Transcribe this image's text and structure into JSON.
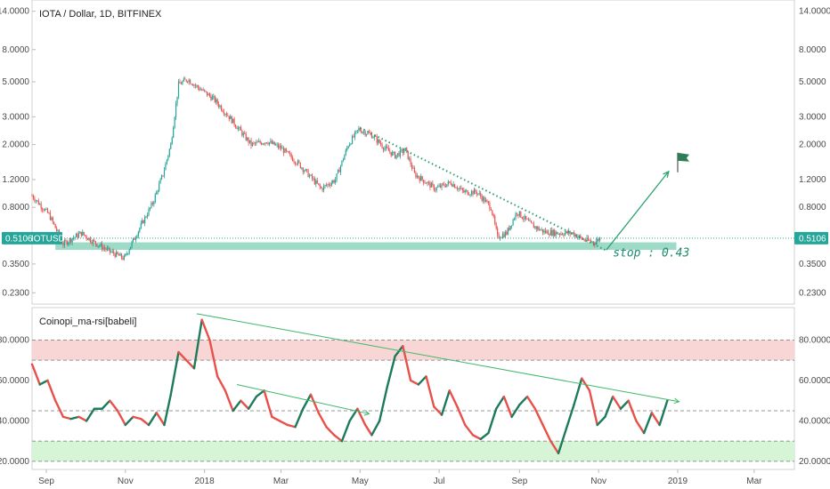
{
  "colors": {
    "up": "#26a69a",
    "down": "#ef5350",
    "rsi_up": "#1d7a5c",
    "rsi_down": "#e8504a",
    "support_zone": "#7ccfb3",
    "trend": "#2a9d6e",
    "overbought": "#f9d6d6",
    "oversold": "#d6f5d6",
    "price_label_bg": "#26a69a"
  },
  "chart_data": [
    {
      "type": "candlestick",
      "title": "IOTA / Dollar, 1D, BITFINEX",
      "y_scale": "log",
      "y_ticks": [
        "14.0000",
        "8.0000",
        "5.0000",
        "3.0000",
        "2.0000",
        "1.2000",
        "0.8000",
        "0.5106",
        "0.3500",
        "0.2300"
      ],
      "y_tick_values": [
        14,
        8,
        5,
        3,
        2,
        1.2,
        0.8,
        0.35,
        0.23
      ],
      "last_price_label": "0.5106",
      "symbol_label": "IOTUSD",
      "x_ticks": [
        "Sep",
        "Nov",
        "2018",
        "Mar",
        "May",
        "Jul",
        "Sep",
        "Nov",
        "2019",
        "Mar"
      ],
      "x_tick_dates": [
        "2017-09-01",
        "2017-11-01",
        "2018-01-01",
        "2018-03-01",
        "2018-05-01",
        "2018-07-01",
        "2018-09-01",
        "2018-11-01",
        "2019-01-01",
        "2019-03-01"
      ],
      "x_range": [
        "2017-08-21",
        "2019-04-01"
      ],
      "price_path": [
        [
          "2017-08-21",
          0.95
        ],
        [
          "2017-09-03",
          0.72
        ],
        [
          "2017-09-14",
          0.47
        ],
        [
          "2017-09-28",
          0.55
        ],
        [
          "2017-10-08",
          0.48
        ],
        [
          "2017-10-20",
          0.42
        ],
        [
          "2017-10-31",
          0.38
        ],
        [
          "2017-11-10",
          0.55
        ],
        [
          "2017-11-22",
          0.85
        ],
        [
          "2017-11-30",
          1.3
        ],
        [
          "2017-12-06",
          2.0
        ],
        [
          "2017-12-12",
          4.8
        ],
        [
          "2017-12-19",
          5.2
        ],
        [
          "2017-12-27",
          4.6
        ],
        [
          "2018-01-08",
          3.9
        ],
        [
          "2018-01-20",
          3.0
        ],
        [
          "2018-02-06",
          2.0
        ],
        [
          "2018-02-18",
          2.1
        ],
        [
          "2018-03-01",
          1.9
        ],
        [
          "2018-03-15",
          1.5
        ],
        [
          "2018-04-01",
          1.05
        ],
        [
          "2018-04-12",
          1.2
        ],
        [
          "2018-04-22",
          2.0
        ],
        [
          "2018-04-30",
          2.5
        ],
        [
          "2018-05-10",
          2.3
        ],
        [
          "2018-05-20",
          1.9
        ],
        [
          "2018-05-28",
          1.7
        ],
        [
          "2018-06-05",
          1.85
        ],
        [
          "2018-06-12",
          1.3
        ],
        [
          "2018-06-28",
          1.05
        ],
        [
          "2018-07-10",
          1.15
        ],
        [
          "2018-07-20",
          1.0
        ],
        [
          "2018-07-30",
          1.0
        ],
        [
          "2018-08-10",
          0.8
        ],
        [
          "2018-08-15",
          0.52
        ],
        [
          "2018-08-22",
          0.55
        ],
        [
          "2018-08-30",
          0.75
        ],
        [
          "2018-09-10",
          0.62
        ],
        [
          "2018-09-20",
          0.56
        ],
        [
          "2018-10-01",
          0.55
        ],
        [
          "2018-10-12",
          0.55
        ],
        [
          "2018-10-20",
          0.5
        ],
        [
          "2018-10-29",
          0.48
        ],
        [
          "2018-11-02",
          0.5106
        ]
      ],
      "support_zone": [
        0.43,
        0.48
      ],
      "support_zone_range": [
        "2017-09-08",
        "2018-12-31"
      ],
      "downtrend_line": [
        [
          "2018-05-01",
          2.55
        ],
        [
          "2018-11-06",
          0.43
        ]
      ],
      "target_arrow": [
        [
          "2018-11-07",
          0.43
        ],
        [
          "2018-12-25",
          1.35
        ]
      ],
      "flag_at": [
        "2019-01-01",
        1.6
      ],
      "annotation": "stop : 0.43"
    },
    {
      "type": "line",
      "title": "Coinopi_ma-rsi[babeli]",
      "y_ticks": [
        "80.0000",
        "60.0000",
        "40.0000",
        "20.0000"
      ],
      "y_tick_values": [
        80,
        60,
        40,
        20
      ],
      "ylim": [
        16,
        96
      ],
      "levels": [
        80,
        70,
        45,
        30,
        20
      ],
      "rsi_path": [
        [
          "2017-08-21",
          68
        ],
        [
          "2017-08-27",
          58
        ],
        [
          "2017-09-02",
          60
        ],
        [
          "2017-09-08",
          50
        ],
        [
          "2017-09-14",
          42
        ],
        [
          "2017-09-20",
          41
        ],
        [
          "2017-09-26",
          42
        ],
        [
          "2017-10-02",
          40
        ],
        [
          "2017-10-08",
          46
        ],
        [
          "2017-10-14",
          46
        ],
        [
          "2017-10-20",
          50
        ],
        [
          "2017-10-26",
          45
        ],
        [
          "2017-11-01",
          38
        ],
        [
          "2017-11-07",
          42
        ],
        [
          "2017-11-13",
          41
        ],
        [
          "2017-11-19",
          38
        ],
        [
          "2017-11-25",
          44
        ],
        [
          "2017-12-01",
          38
        ],
        [
          "2017-12-06",
          53
        ],
        [
          "2017-12-12",
          74
        ],
        [
          "2017-12-18",
          70
        ],
        [
          "2017-12-24",
          66
        ],
        [
          "2017-12-30",
          90
        ],
        [
          "2018-01-05",
          80
        ],
        [
          "2018-01-11",
          62
        ],
        [
          "2018-01-17",
          55
        ],
        [
          "2018-01-23",
          45
        ],
        [
          "2018-01-29",
          50
        ],
        [
          "2018-02-04",
          46
        ],
        [
          "2018-02-10",
          52
        ],
        [
          "2018-02-16",
          55
        ],
        [
          "2018-02-22",
          42
        ],
        [
          "2018-02-28",
          40
        ],
        [
          "2018-03-06",
          38
        ],
        [
          "2018-03-12",
          37
        ],
        [
          "2018-03-18",
          46
        ],
        [
          "2018-03-24",
          53
        ],
        [
          "2018-03-30",
          44
        ],
        [
          "2018-04-05",
          37
        ],
        [
          "2018-04-11",
          33
        ],
        [
          "2018-04-17",
          30
        ],
        [
          "2018-04-23",
          40
        ],
        [
          "2018-04-29",
          46
        ],
        [
          "2018-05-05",
          38
        ],
        [
          "2018-05-10",
          33
        ],
        [
          "2018-05-16",
          40
        ],
        [
          "2018-05-22",
          57
        ],
        [
          "2018-05-28",
          72
        ],
        [
          "2018-06-03",
          77
        ],
        [
          "2018-06-09",
          60
        ],
        [
          "2018-06-15",
          58
        ],
        [
          "2018-06-21",
          62
        ],
        [
          "2018-06-27",
          47
        ],
        [
          "2018-07-03",
          43
        ],
        [
          "2018-07-09",
          55
        ],
        [
          "2018-07-15",
          47
        ],
        [
          "2018-07-21",
          38
        ],
        [
          "2018-07-27",
          33
        ],
        [
          "2018-08-02",
          31
        ],
        [
          "2018-08-08",
          34
        ],
        [
          "2018-08-14",
          46
        ],
        [
          "2018-08-20",
          52
        ],
        [
          "2018-08-26",
          42
        ],
        [
          "2018-09-01",
          48
        ],
        [
          "2018-09-07",
          52
        ],
        [
          "2018-09-13",
          46
        ],
        [
          "2018-09-19",
          38
        ],
        [
          "2018-09-25",
          30
        ],
        [
          "2018-10-01",
          24
        ],
        [
          "2018-10-07",
          36
        ],
        [
          "2018-10-13",
          48
        ],
        [
          "2018-10-19",
          61
        ],
        [
          "2018-10-25",
          55
        ],
        [
          "2018-10-31",
          38
        ],
        [
          "2018-11-06",
          42
        ],
        [
          "2018-11-12",
          52
        ],
        [
          "2018-11-18",
          46
        ],
        [
          "2018-11-24",
          50
        ],
        [
          "2018-11-30",
          40
        ],
        [
          "2018-12-06",
          34
        ],
        [
          "2018-12-12",
          44
        ],
        [
          "2018-12-18",
          38
        ],
        [
          "2018-12-24",
          50
        ]
      ],
      "trend_lines": [
        [
          [
            "2017-12-26",
            93
          ],
          [
            "2019-01-02",
            49.5
          ]
        ],
        [
          [
            "2018-01-26",
            58
          ],
          [
            "2018-05-08",
            43.5
          ]
        ]
      ]
    }
  ]
}
